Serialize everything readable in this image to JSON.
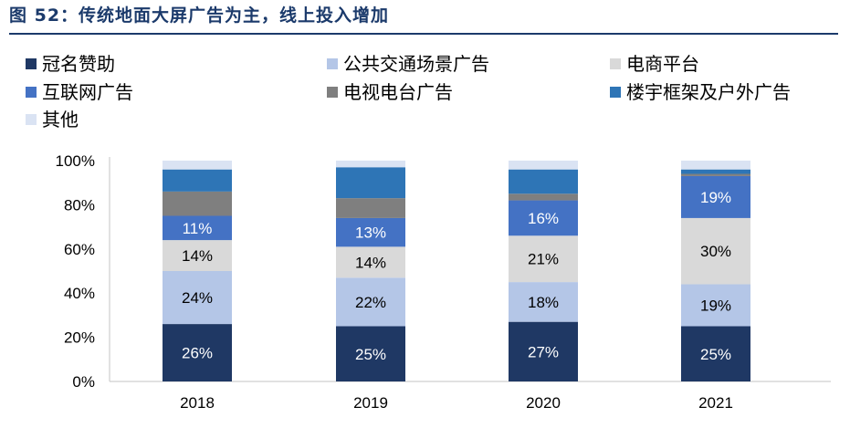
{
  "figure_title": "图 52：传统地面大屏广告为主，线上投入增加",
  "colors": {
    "title": "#1b3a6b",
    "axis": "#cfcfcf",
    "text": "#000000",
    "label_light": "#ffffff",
    "label_dark": "#000000"
  },
  "chart_data": {
    "type": "bar",
    "stacked": true,
    "title": "图 52：传统地面大屏广告为主，线上投入增加",
    "categories": [
      "2018",
      "2019",
      "2020",
      "2021"
    ],
    "ylim": [
      0,
      100
    ],
    "y_ticks": [
      "0%",
      "20%",
      "40%",
      "60%",
      "80%",
      "100%"
    ],
    "grid": false,
    "legend_position": "top",
    "series": [
      {
        "name": "冠名赞助",
        "color": "#1f3864",
        "values": [
          26,
          25,
          27,
          25
        ],
        "labels": [
          "26%",
          "25%",
          "27%",
          "25%"
        ],
        "label_color": "#ffffff"
      },
      {
        "name": "公共交通场景广告",
        "color": "#b4c6e7",
        "values": [
          24,
          22,
          18,
          19
        ],
        "labels": [
          "24%",
          "22%",
          "18%",
          "19%"
        ],
        "label_color": "#000000"
      },
      {
        "name": "电商平台",
        "color": "#d9d9d9",
        "values": [
          14,
          14,
          21,
          30
        ],
        "labels": [
          "14%",
          "14%",
          "21%",
          "30%"
        ],
        "label_color": "#000000"
      },
      {
        "name": "互联网广告",
        "color": "#4472c4",
        "values": [
          11,
          13,
          16,
          19
        ],
        "labels": [
          "11%",
          "13%",
          "16%",
          "19%"
        ],
        "label_color": "#ffffff"
      },
      {
        "name": "电视电台广告",
        "color": "#7f7f7f",
        "values": [
          11,
          9,
          3,
          1
        ],
        "labels": [
          "",
          "",
          "",
          ""
        ],
        "label_color": "#ffffff"
      },
      {
        "name": "楼宇框架及户外广告",
        "color": "#2e75b6",
        "values": [
          10,
          14,
          11,
          2
        ],
        "labels": [
          "",
          "",
          "",
          ""
        ],
        "label_color": "#ffffff"
      },
      {
        "name": "其他",
        "color": "#dae3f3",
        "values": [
          4,
          3,
          4,
          4
        ],
        "labels": [
          "",
          "",
          "",
          ""
        ],
        "label_color": "#000000"
      }
    ]
  }
}
